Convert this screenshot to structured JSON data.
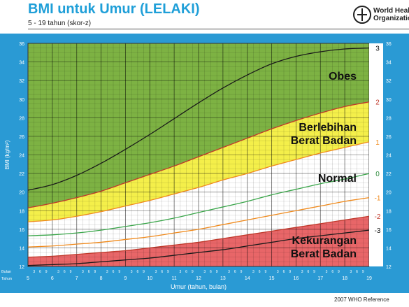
{
  "header": {
    "title": "BMI untuk Umur (LELAKI)",
    "subtitle": "5 - 19 tahun (skor-z)",
    "org_line1": "World Heal",
    "org_line2": "Organizatio"
  },
  "footer": {
    "reference": "2007  WHO Reference"
  },
  "colors": {
    "panel": "#2a9ad4",
    "green_zone": "#7db243",
    "yellow_zone": "#f4ef4a",
    "red_zone": "#e86668",
    "normal_zone": "#ffffff",
    "line_3": "#1a1a1a",
    "line_2": "#c0392b",
    "line_1": "#f08a1c",
    "line_0": "#3aa64a",
    "line_m1": "#f08a1c",
    "line_m2": "#c0392b",
    "line_m3": "#1a1a1a"
  },
  "zone_labels": {
    "obes": "Obes",
    "overweight_1": "Berlebihan",
    "overweight_2": "Berat Badan",
    "normal": "Normal",
    "under_1": "Kekurangan",
    "under_2": "Berat Badan"
  },
  "chart_data": {
    "type": "line",
    "title": "BMI untuk Umur (LELAKI)",
    "subtitle": "5 - 19 tahun (skor-z)",
    "xlabel": "Umur (tahun, bulan)",
    "ylabel": "BMI (kg/m²)",
    "xlim": [
      5,
      19
    ],
    "ylim": [
      12,
      36
    ],
    "x_ticks": [
      "5",
      "6",
      "7",
      "8",
      "9",
      "10",
      "11",
      "12",
      "13",
      "14",
      "15",
      "16",
      "17",
      "18",
      "19"
    ],
    "y_ticks": [
      "12",
      "14",
      "16",
      "18",
      "20",
      "22",
      "24",
      "26",
      "28",
      "30",
      "32",
      "34",
      "36"
    ],
    "axis_row_labels": {
      "months": "Bulan",
      "years": "Tahun"
    },
    "month_ticks": [
      "3",
      "6",
      "9"
    ],
    "grid": true,
    "x": [
      5,
      6,
      7,
      8,
      9,
      10,
      11,
      12,
      13,
      14,
      15,
      16,
      17,
      18,
      19
    ],
    "series": [
      {
        "name": "3",
        "values": [
          20.2,
          20.8,
          21.8,
          23.1,
          24.6,
          26.2,
          27.9,
          29.6,
          31.2,
          32.6,
          33.8,
          34.6,
          35.1,
          35.4,
          35.5
        ]
      },
      {
        "name": "2",
        "values": [
          18.3,
          18.8,
          19.4,
          20.1,
          21.0,
          21.9,
          22.8,
          23.8,
          24.8,
          25.8,
          26.8,
          27.7,
          28.5,
          29.2,
          29.7
        ]
      },
      {
        "name": "1",
        "values": [
          16.8,
          17.0,
          17.4,
          17.9,
          18.5,
          19.1,
          19.8,
          20.5,
          21.3,
          22.0,
          22.8,
          23.5,
          24.2,
          24.8,
          25.4
        ]
      },
      {
        "name": "0",
        "values": [
          15.3,
          15.4,
          15.6,
          15.9,
          16.3,
          16.7,
          17.2,
          17.8,
          18.4,
          19.0,
          19.7,
          20.3,
          20.9,
          21.4,
          22.0
        ]
      },
      {
        "name": "-1",
        "values": [
          14.1,
          14.2,
          14.4,
          14.6,
          14.9,
          15.2,
          15.6,
          16.0,
          16.5,
          17.0,
          17.5,
          18.0,
          18.5,
          19.0,
          19.4
        ]
      },
      {
        "name": "-2",
        "values": [
          13.0,
          13.1,
          13.3,
          13.5,
          13.7,
          14.0,
          14.3,
          14.6,
          15.0,
          15.4,
          15.8,
          16.2,
          16.6,
          17.0,
          17.4
        ]
      },
      {
        "name": "-3",
        "values": [
          12.1,
          12.2,
          12.3,
          12.5,
          12.7,
          12.9,
          13.2,
          13.5,
          13.8,
          14.2,
          14.6,
          15.0,
          15.3,
          15.6,
          15.9
        ]
      }
    ]
  }
}
